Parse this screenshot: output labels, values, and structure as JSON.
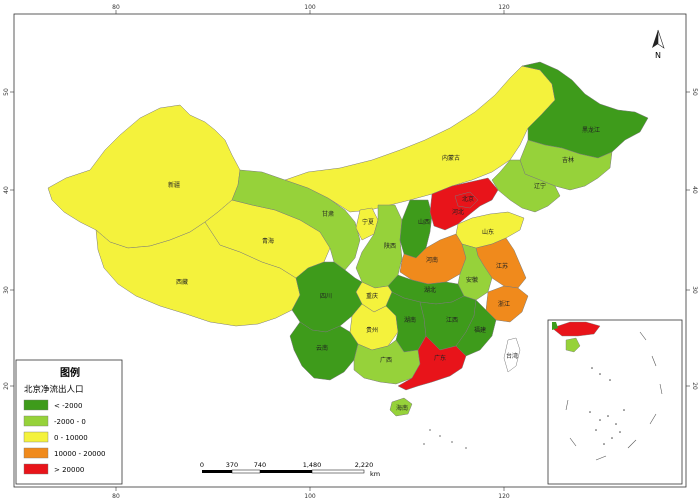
{
  "colors": {
    "dark_green": "#3e9b1b",
    "light_green": "#96d23a",
    "yellow": "#f4f23c",
    "orange": "#f08a1c",
    "red": "#e8141a",
    "sea": "#ffffff",
    "border": "#7a7a7a"
  },
  "axes": {
    "top_ticks": [
      "80",
      "100",
      "120"
    ],
    "bottom_ticks": [
      "80",
      "100",
      "120"
    ],
    "left_ticks": [
      "50",
      "40",
      "30",
      "20"
    ],
    "right_ticks": [
      "50",
      "40",
      "30",
      "20"
    ]
  },
  "north_label": "N",
  "legend": {
    "title": "图例",
    "subtitle": "北京净流出人口",
    "items": [
      {
        "label": "< -2000",
        "color": "#3e9b1b"
      },
      {
        "label": "-2000 - 0",
        "color": "#96d23a"
      },
      {
        "label": "0 - 10000",
        "color": "#f4f23c"
      },
      {
        "label": "10000 - 20000",
        "color": "#f08a1c"
      },
      {
        "label": "> 20000",
        "color": "#e8141a"
      }
    ]
  },
  "scale_bar": {
    "labels": [
      "0",
      "370",
      "740",
      "1,480",
      "2,220"
    ],
    "unit": "km"
  },
  "provinces": {
    "xinjiang": "新疆",
    "xizang": "西藏",
    "qinghai": "青海",
    "gansu": "甘肃",
    "neimenggu": "内蒙古",
    "heilongjiang": "黑龙江",
    "jilin": "吉林",
    "liaoning": "辽宁",
    "beijing": "北京",
    "hebei": "河北",
    "shanxi": "山西",
    "shandong": "山东",
    "henan": "河南",
    "shaanxi": "陕西",
    "ningxia": "宁夏",
    "sichuan": "四川",
    "chongqing": "重庆",
    "hubei": "湖北",
    "anhui": "安徽",
    "jiangsu": "江苏",
    "zhejiang": "浙江",
    "hunan": "湖南",
    "jiangxi": "江西",
    "fujian": "福建",
    "guizhou": "贵州",
    "yunnan": "云南",
    "guangxi": "广西",
    "guangdong": "广东",
    "hainan": "海南",
    "taiwan": "台湾"
  }
}
